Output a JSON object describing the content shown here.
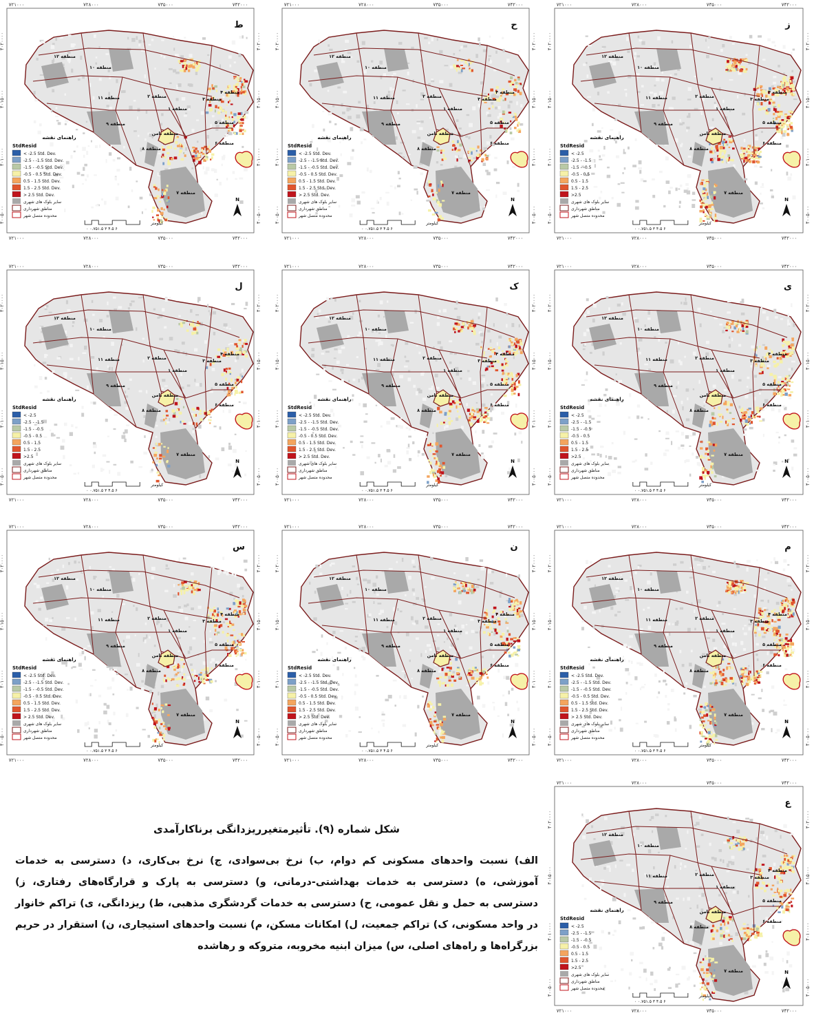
{
  "figure": {
    "title": "شکل شماره (۹). تأثیرمتغیرریزدانگی برناکارآمدی",
    "caption": "الف) نسبت واحدهای مسکونی کم دوام، ب) نرخ بی‌سوادی، ج) نرخ بی‌کاری، د) دسترسی به خدمات آموزشی، ه) دسترسی به خدمات بهداشتی-درمانی، و) دسترسی به پارک و قرارگاه‌های رفتاری، ز) دسترسی به حمل و نقل عمومی، ح) دسترسی به خدمات گردشگری مذهبی، ط) ریزدانگی، ی) تراکم خانوار در واحد مسکونی، ک) تراکم جمعیت، ل) امکانات مسکن، م) نسبت واحدهای استیجاری، ن) استقرار در حریم بزرگراه‌ها و راه‌های اصلی، س) میزان ابنیه مخروبه، متروکه و رهاشده"
  },
  "axes": {
    "x_ticks": [
      "۷۲۱۰۰۰",
      "۷۲۸۰۰۰",
      "۷۳۵۰۰۰",
      "۷۴۲۰۰۰"
    ],
    "y_ticks": [
      "۴۰۲۰۰۰۰",
      "۴۰۱۵۰۰۰",
      "۴۰۱۰۰۰۰",
      "۴۰۰۵۰۰۰"
    ]
  },
  "map_text": {
    "legend_heading": "راهنمای نقشه",
    "legend_field": "StdResid",
    "scale_unit": "کیلومتر",
    "scale_numbers": "۰ ۰.۷۵۱.۵ ۳ ۴.۵ ۶",
    "north": "N",
    "zones": [
      "منطقه ۱",
      "منطقه ۲",
      "منطقه ۳",
      "منطقه ۴",
      "منطقه ۵",
      "منطقه ۶",
      "منطقه ۷",
      "منطقه ۸",
      "منطقه ۹",
      "منطقه ۱۰",
      "منطقه ۱۱",
      "منطقه ۱۲",
      "منطقه ثامن"
    ]
  },
  "legend_variants": {
    "long": [
      "< -2.5 Std. Dev.",
      "-2.5 - -1.5 Std. Dev.",
      "-1.5 - -0.5 Std. Dev.",
      "-0.5 - 0.5 Std. Dev.",
      "0.5 - 1.5 Std. Dev.",
      "1.5 - 2.5 Std. Dev.",
      "> 2.5 Std. Dev."
    ],
    "short": [
      "< -2.5",
      "-2.5 - -1.5",
      "-1.5 - -0.5",
      "-0.5 - 0.5",
      "0.5 - 1.5",
      "1.5 - 2.5",
      ">2.5"
    ],
    "extra": [
      "سایر بلوک های شهری",
      "مناطق شهرداری",
      "محدوده متصل شهر"
    ]
  },
  "colors": {
    "bins": [
      "#2b5ea8",
      "#7da0c8",
      "#b9c9a6",
      "#f6f1a8",
      "#f4a55e",
      "#e0552e",
      "#c0141c"
    ],
    "other_blocks": "#a9a9a9",
    "boundary": "#7a1b1b",
    "zone_fill": "#e6e6e6"
  },
  "panels": [
    {
      "letter": "ط",
      "legend": "long",
      "intensity": "medium"
    },
    {
      "letter": "ح",
      "legend": "long",
      "intensity": "low"
    },
    {
      "letter": "ز",
      "legend": "short",
      "intensity": "high"
    },
    {
      "letter": "ل",
      "legend": "short",
      "intensity": "low"
    },
    {
      "letter": "ک",
      "legend": "long",
      "intensity": "medium"
    },
    {
      "letter": "ی",
      "legend": "short",
      "intensity": "medium"
    },
    {
      "letter": "س",
      "legend": "long",
      "intensity": "medium"
    },
    {
      "letter": "ن",
      "legend": "long",
      "intensity": "medium"
    },
    {
      "letter": "م",
      "legend": "long",
      "intensity": "high"
    },
    {
      "letter": "ع",
      "legend": "short",
      "intensity": "medium"
    }
  ]
}
